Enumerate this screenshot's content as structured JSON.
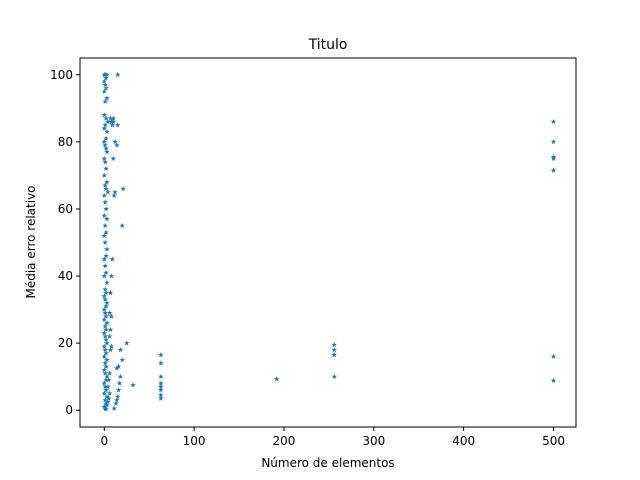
{
  "chart_data": {
    "type": "scatter",
    "title": "Titulo",
    "xlabel": "Número de elementos",
    "ylabel": "Média erro relativo",
    "xlim": [
      -27,
      525
    ],
    "ylim": [
      -5,
      105
    ],
    "xticks": [
      0,
      100,
      200,
      300,
      400,
      500
    ],
    "yticks": [
      0,
      20,
      40,
      60,
      80,
      100
    ],
    "grid": false,
    "marker": "star",
    "color": "#1f77b4",
    "series": [
      {
        "points": [
          [
            0,
            100
          ],
          [
            1,
            100
          ],
          [
            2,
            99
          ],
          [
            3,
            100
          ],
          [
            0,
            98
          ],
          [
            1,
            97
          ],
          [
            2,
            96
          ],
          [
            0,
            95
          ],
          [
            3,
            93
          ],
          [
            1,
            92
          ],
          [
            0,
            88
          ],
          [
            2,
            87
          ],
          [
            4,
            86
          ],
          [
            1,
            85
          ],
          [
            0,
            84
          ],
          [
            3,
            83
          ],
          [
            2,
            81
          ],
          [
            0,
            80
          ],
          [
            1,
            79
          ],
          [
            2,
            78
          ],
          [
            3,
            77
          ],
          [
            0,
            75
          ],
          [
            1,
            74
          ],
          [
            2,
            72
          ],
          [
            0,
            70
          ],
          [
            3,
            68
          ],
          [
            1,
            67
          ],
          [
            2,
            66
          ],
          [
            4,
            65
          ],
          [
            0,
            64
          ],
          [
            1,
            62
          ],
          [
            2,
            60
          ],
          [
            0,
            58
          ],
          [
            3,
            57
          ],
          [
            1,
            55
          ],
          [
            2,
            53
          ],
          [
            0,
            52
          ],
          [
            1,
            50
          ],
          [
            3,
            48
          ],
          [
            2,
            46
          ],
          [
            0,
            45
          ],
          [
            1,
            43
          ],
          [
            2,
            41
          ],
          [
            0,
            40
          ],
          [
            3,
            38
          ],
          [
            1,
            36
          ],
          [
            2,
            35
          ],
          [
            0,
            34
          ],
          [
            1,
            33
          ],
          [
            3,
            32
          ],
          [
            2,
            31
          ],
          [
            0,
            30
          ],
          [
            1,
            29
          ],
          [
            2,
            28
          ],
          [
            0,
            27
          ],
          [
            3,
            26
          ],
          [
            1,
            25
          ],
          [
            2,
            24
          ],
          [
            0,
            23
          ],
          [
            1,
            22
          ],
          [
            2,
            21
          ],
          [
            3,
            20
          ],
          [
            0,
            19
          ],
          [
            1,
            18
          ],
          [
            2,
            17
          ],
          [
            0,
            16
          ],
          [
            3,
            15
          ],
          [
            1,
            14
          ],
          [
            2,
            13
          ],
          [
            0,
            12
          ],
          [
            1,
            11
          ],
          [
            3,
            10
          ],
          [
            2,
            9
          ],
          [
            0,
            8
          ],
          [
            1,
            7
          ],
          [
            2,
            6
          ],
          [
            0,
            5
          ],
          [
            3,
            4
          ],
          [
            1,
            3
          ],
          [
            2,
            2
          ],
          [
            0,
            1
          ],
          [
            1,
            0.5
          ],
          [
            2,
            0.3
          ],
          [
            3,
            1.5
          ],
          [
            4,
            2.5
          ],
          [
            5,
            3.5
          ],
          [
            6,
            5
          ],
          [
            4,
            7
          ],
          [
            5,
            9
          ],
          [
            6,
            11
          ],
          [
            7,
            18
          ],
          [
            8,
            19
          ],
          [
            6,
            22
          ],
          [
            7,
            24
          ],
          [
            8,
            28
          ],
          [
            6,
            29
          ],
          [
            7,
            35
          ],
          [
            8,
            40
          ],
          [
            9,
            45
          ],
          [
            8,
            86
          ],
          [
            9,
            85
          ],
          [
            7,
            87
          ],
          [
            10,
            86
          ],
          [
            11,
            64
          ],
          [
            12,
            80
          ],
          [
            10,
            75
          ],
          [
            15,
            100
          ],
          [
            14,
            79
          ],
          [
            15,
            85
          ],
          [
            10,
            87
          ],
          [
            12,
            65
          ],
          [
            11,
            0.5
          ],
          [
            13,
            2
          ],
          [
            14,
            3
          ],
          [
            15,
            4
          ],
          [
            16,
            6
          ],
          [
            14,
            12.5
          ],
          [
            16,
            13
          ],
          [
            17,
            8
          ],
          [
            18,
            10
          ],
          [
            20,
            55
          ],
          [
            21,
            66
          ],
          [
            25,
            20
          ],
          [
            32,
            7.5
          ],
          [
            20,
            15
          ],
          [
            18,
            18
          ],
          [
            63,
            16.5
          ],
          [
            63,
            14
          ],
          [
            63,
            10
          ],
          [
            63,
            8
          ],
          [
            63,
            7
          ],
          [
            63,
            6
          ],
          [
            63,
            4.5
          ],
          [
            63,
            3.5
          ],
          [
            192,
            9.3
          ],
          [
            256,
            19.5
          ],
          [
            256,
            18
          ],
          [
            256,
            16.5
          ],
          [
            256,
            10
          ],
          [
            500,
            86
          ],
          [
            500,
            80
          ],
          [
            500,
            75
          ],
          [
            500,
            75.5
          ],
          [
            500,
            71.5
          ],
          [
            500,
            16
          ],
          [
            500,
            8.8
          ]
        ]
      }
    ]
  }
}
